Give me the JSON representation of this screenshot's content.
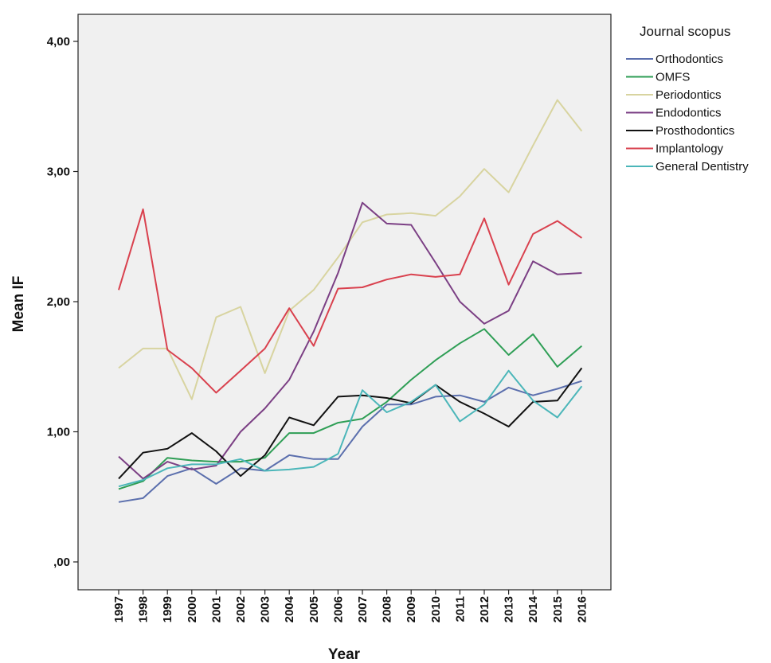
{
  "chart_data": {
    "type": "line",
    "xlabel": "Year",
    "ylabel": "Mean IF",
    "ylim": [
      -0.2,
      4.24
    ],
    "yticks": [
      0,
      1,
      2,
      3,
      4
    ],
    "ytick_labels": [
      ",00",
      "1,00",
      "2,00",
      "3,00",
      "4,00"
    ],
    "grid": false,
    "legend_title": "Journal scopus",
    "legend_placement": "top-right, outside plot",
    "x": [
      "1997",
      "1998",
      "1999",
      "2000",
      "2001",
      "2002",
      "2003",
      "2004",
      "2005",
      "2006",
      "2007",
      "2008",
      "2009",
      "2010",
      "2011",
      "2012",
      "2013",
      "2014",
      "2015",
      "2016"
    ],
    "series": [
      {
        "name": "Orthodontics",
        "color": "#5b6fad",
        "values": [
          0.46,
          0.49,
          0.66,
          0.72,
          0.6,
          0.72,
          0.7,
          0.82,
          0.79,
          0.79,
          1.04,
          1.21,
          1.21,
          1.27,
          1.28,
          1.23,
          1.34,
          1.28,
          1.33,
          1.39
        ]
      },
      {
        "name": "OMFS",
        "color": "#2e9e55",
        "values": [
          0.56,
          0.62,
          0.8,
          0.78,
          0.77,
          0.77,
          0.8,
          0.99,
          0.99,
          1.07,
          1.1,
          1.23,
          1.4,
          1.55,
          1.68,
          1.79,
          1.59,
          1.75,
          1.5,
          1.66
        ]
      },
      {
        "name": "Periodontics",
        "color": "#d8d4a0",
        "values": [
          1.49,
          1.64,
          1.64,
          1.25,
          1.88,
          1.96,
          1.45,
          1.93,
          2.09,
          2.34,
          2.61,
          2.67,
          2.68,
          2.66,
          2.81,
          3.02,
          2.84,
          3.2,
          3.55,
          3.31
        ]
      },
      {
        "name": "Endodontics",
        "color": "#7b3f84",
        "values": [
          0.81,
          0.64,
          0.77,
          0.71,
          0.74,
          1.0,
          1.18,
          1.4,
          1.77,
          2.22,
          2.76,
          2.6,
          2.59,
          2.3,
          2.0,
          1.83,
          1.93,
          2.31,
          2.21,
          2.22
        ]
      },
      {
        "name": "Prosthodontics",
        "color": "#111111",
        "values": [
          0.64,
          0.84,
          0.87,
          0.99,
          0.85,
          0.66,
          0.82,
          1.11,
          1.05,
          1.27,
          1.28,
          1.26,
          1.22,
          1.36,
          1.23,
          1.14,
          1.04,
          1.23,
          1.24,
          1.49
        ]
      },
      {
        "name": "Implantology",
        "color": "#d9414e",
        "values": [
          2.09,
          2.71,
          1.63,
          1.49,
          1.3,
          1.47,
          1.64,
          1.95,
          1.66,
          2.1,
          2.11,
          2.17,
          2.21,
          2.19,
          2.21,
          2.64,
          2.13,
          2.52,
          2.62,
          2.49
        ]
      },
      {
        "name": "General Dentistry",
        "color": "#4bb6b9",
        "values": [
          0.58,
          0.63,
          0.72,
          0.75,
          0.75,
          0.79,
          0.7,
          0.71,
          0.73,
          0.83,
          1.32,
          1.15,
          1.23,
          1.36,
          1.08,
          1.21,
          1.47,
          1.24,
          1.11,
          1.35
        ]
      }
    ]
  }
}
